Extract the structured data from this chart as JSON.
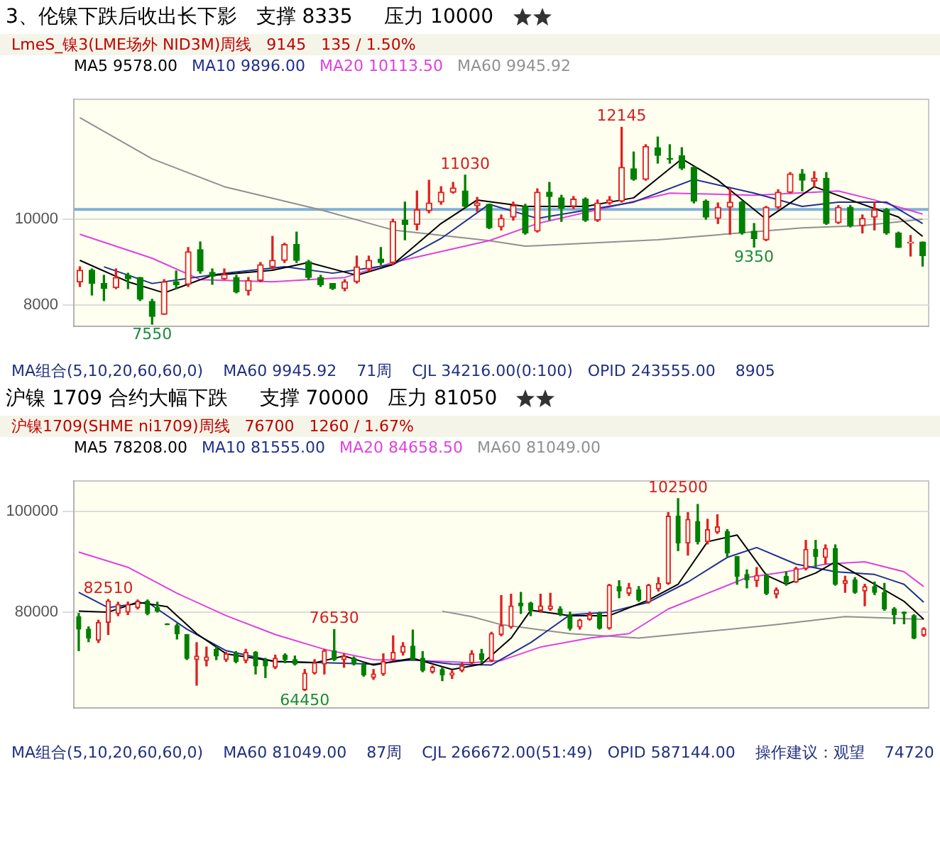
{
  "chart_data": [
    {
      "type": "candlestick",
      "title": "3、伦镍下跌后收出长下影   支撑 8335     压力 10000",
      "subtitle": "LmeS_镍3(LME场外 NID3M)周线   9145   135 / 1.50%",
      "categories": [
        null,
        null,
        null,
        null,
        null,
        null,
        null,
        null,
        null,
        null,
        null,
        null,
        null,
        null,
        null,
        null,
        null,
        null,
        null,
        null,
        null,
        null,
        null,
        null,
        null,
        null,
        null,
        null,
        null,
        null,
        null,
        null,
        null,
        null,
        null,
        null,
        null,
        null,
        null,
        null,
        null,
        null,
        null,
        null,
        null,
        null,
        null,
        null,
        null,
        null,
        null,
        null,
        null,
        null,
        null,
        null,
        null,
        null,
        null,
        null,
        null,
        null,
        null,
        null,
        null,
        null,
        null,
        null,
        null,
        null,
        null
      ],
      "ohlc": [
        [
          8535,
          8890,
          8430,
          8810
        ],
        [
          8810,
          8840,
          8230,
          8505
        ],
        [
          8505,
          8690,
          8100,
          8380
        ],
        [
          8400,
          8840,
          8380,
          8640
        ],
        [
          8690,
          8740,
          8380,
          8610
        ],
        [
          8640,
          8640,
          8100,
          8130
        ],
        [
          8080,
          8130,
          7550,
          7730
        ],
        [
          7780,
          8590,
          7780,
          8540
        ],
        [
          8540,
          8790,
          8380,
          8470
        ],
        [
          8480,
          9340,
          8430,
          9240
        ],
        [
          9290,
          9470,
          8740,
          8790
        ],
        [
          8760,
          8840,
          8480,
          8670
        ],
        [
          8610,
          8840,
          8590,
          8710
        ],
        [
          8640,
          8690,
          8280,
          8300
        ],
        [
          8330,
          8640,
          8230,
          8570
        ],
        [
          8570,
          8990,
          8540,
          8940
        ],
        [
          8890,
          9600,
          8840,
          9040
        ],
        [
          9040,
          9440,
          8990,
          9410
        ],
        [
          9410,
          9700,
          8990,
          9040
        ],
        [
          9010,
          9040,
          8590,
          8640
        ],
        [
          8640,
          8690,
          8430,
          8470
        ],
        [
          8500,
          8500,
          8360,
          8380
        ],
        [
          8380,
          8590,
          8330,
          8540
        ],
        [
          8540,
          9140,
          8510,
          8890
        ],
        [
          8840,
          9140,
          8790,
          9040
        ],
        [
          9070,
          9340,
          8940,
          8990
        ],
        [
          8990,
          10000,
          8940,
          9950
        ],
        [
          9980,
          10400,
          9520,
          9880
        ],
        [
          9880,
          10660,
          9750,
          10220
        ],
        [
          10200,
          10910,
          10150,
          10380
        ],
        [
          10400,
          10760,
          10350,
          10630
        ],
        [
          10630,
          10860,
          10610,
          10730
        ],
        [
          10660,
          11030,
          10280,
          10300
        ],
        [
          10320,
          10510,
          10180,
          10380
        ],
        [
          10350,
          10350,
          9780,
          9800
        ],
        [
          9820,
          10100,
          9750,
          10020
        ],
        [
          10050,
          10400,
          9980,
          10320
        ],
        [
          10300,
          10350,
          9650,
          9680
        ],
        [
          9720,
          10710,
          9700,
          10630
        ],
        [
          10630,
          10860,
          9980,
          10530
        ],
        [
          10500,
          10560,
          9950,
          10250
        ],
        [
          10300,
          10530,
          10250,
          10470
        ],
        [
          10470,
          10500,
          9950,
          9980
        ],
        [
          9980,
          10450,
          9950,
          10380
        ],
        [
          10380,
          10530,
          10350,
          10450
        ],
        [
          10420,
          12145,
          10400,
          11210
        ],
        [
          11180,
          11570,
          10910,
          10930
        ],
        [
          10930,
          11740,
          10910,
          11700
        ],
        [
          11670,
          11920,
          11310,
          11490
        ],
        [
          11420,
          11740,
          11310,
          11400
        ],
        [
          11480,
          11670,
          11160,
          11190
        ],
        [
          11210,
          11230,
          10380,
          10420
        ],
        [
          10420,
          10450,
          10000,
          10050
        ],
        [
          10020,
          10380,
          9900,
          10280
        ],
        [
          10280,
          10710,
          9650,
          10400
        ],
        [
          10400,
          10420,
          9650,
          9680
        ],
        [
          9720,
          9900,
          9350,
          9550
        ],
        [
          9520,
          10300,
          9500,
          10280
        ],
        [
          10280,
          10690,
          10250,
          10630
        ],
        [
          10630,
          11090,
          10610,
          11060
        ],
        [
          11060,
          11160,
          10660,
          10910
        ],
        [
          10890,
          11110,
          10760,
          10960
        ],
        [
          10960,
          11090,
          9880,
          9900
        ],
        [
          9920,
          10320,
          9900,
          10280
        ],
        [
          10280,
          10320,
          9820,
          9850
        ],
        [
          9850,
          10100,
          9680,
          10020
        ],
        [
          10050,
          10400,
          9750,
          10220
        ],
        [
          10220,
          10250,
          9650,
          9680
        ],
        [
          9680,
          9700,
          9340,
          9340
        ],
        [
          9440,
          9620,
          9140,
          9470
        ],
        [
          9470,
          9470,
          8905,
          9145
        ]
      ],
      "series": [
        {
          "type": "line",
          "name": "MA5 9578.00",
          "color": "#000000",
          "values": [
            9040,
            null,
            null,
            null,
            8540,
            null,
            null,
            8280,
            null,
            null,
            null,
            8690,
            null,
            null,
            null,
            null,
            8810,
            null,
            null,
            8990,
            null,
            null,
            null,
            8690,
            null,
            null,
            8940,
            null,
            null,
            null,
            9900,
            null,
            null,
            10450,
            null,
            null,
            null,
            10300,
            null,
            null,
            null,
            null,
            10300,
            null,
            null,
            null,
            10500,
            null,
            null,
            null,
            11410,
            null,
            null,
            10910,
            null,
            null,
            null,
            10000,
            null,
            null,
            null,
            10760,
            null,
            null,
            10450,
            null,
            null,
            null,
            10050,
            null,
            9600
          ]
        },
        {
          "type": "line",
          "name": "MA10 9896.00",
          "color": "#1f2f8f",
          "values": [
            null,
            null,
            8890,
            null,
            null,
            null,
            8500,
            null,
            null,
            null,
            null,
            null,
            8740,
            null,
            null,
            null,
            null,
            8890,
            null,
            null,
            null,
            8740,
            null,
            null,
            null,
            null,
            8940,
            null,
            null,
            null,
            9550,
            null,
            null,
            null,
            10350,
            null,
            null,
            null,
            10020,
            null,
            null,
            null,
            null,
            null,
            null,
            null,
            10400,
            null,
            null,
            null,
            null,
            10930,
            null,
            null,
            null,
            null,
            10610,
            null,
            null,
            null,
            10300,
            null,
            null,
            10400,
            null,
            null,
            null,
            10400,
            null,
            null,
            9900
          ]
        },
        {
          "type": "line",
          "name": "MA20 10113.50",
          "color": "#e040e0",
          "values": [
            9650,
            null,
            null,
            null,
            null,
            null,
            9090,
            null,
            null,
            null,
            8590,
            null,
            null,
            null,
            null,
            null,
            8540,
            null,
            null,
            null,
            null,
            null,
            8640,
            null,
            null,
            null,
            8990,
            null,
            null,
            null,
            null,
            null,
            null,
            null,
            9500,
            null,
            null,
            null,
            9900,
            null,
            null,
            null,
            null,
            null,
            null,
            null,
            null,
            null,
            null,
            10610,
            null,
            null,
            null,
            null,
            null,
            null,
            10560,
            null,
            null,
            null,
            null,
            null,
            null,
            10660,
            null,
            null,
            10450,
            null,
            null,
            null,
            10120
          ]
        },
        {
          "type": "line",
          "name": "MA60 9945.92",
          "color": "#909090",
          "values": [
            12370,
            null,
            null,
            null,
            null,
            null,
            11410,
            null,
            null,
            null,
            null,
            null,
            10760,
            null,
            null,
            null,
            null,
            null,
            null,
            null,
            10220,
            null,
            null,
            null,
            null,
            null,
            9750,
            null,
            null,
            null,
            null,
            null,
            null,
            null,
            9500,
            null,
            null,
            9370,
            null,
            null,
            null,
            null,
            null,
            null,
            null,
            null,
            null,
            null,
            9520,
            null,
            null,
            null,
            null,
            null,
            null,
            null,
            null,
            null,
            null,
            null,
            9800,
            null,
            null,
            null,
            null,
            9850,
            null,
            null,
            null,
            null,
            10000
          ]
        }
      ],
      "ylim": [
        7500,
        12800
      ],
      "yticks": [
        8000,
        10000
      ],
      "grid": "y",
      "legend": "top left",
      "marker": "none",
      "line_style": "solid",
      "ref_lines": [
        {
          "axis": "y",
          "value": 10230,
          "color": "#7fb0d8"
        }
      ],
      "annotations": [
        "MA组合(5,10,20,60,60,0)",
        "MA60 9945.92",
        "71周",
        "CJL 34216.00(0:100)   OPID 243555.00",
        {
          "text": "11030",
          "y": 11030
        },
        {
          "text": "12145",
          "y": 12145
        },
        {
          "text": "9350",
          "y": 9350
        },
        "8905",
        {
          "text": "7550",
          "y": 7550
        }
      ]
    },
    {
      "type": "candlestick",
      "title": "沪镍 1709 合约大幅下跌     支撑 70000   压力 81050",
      "subtitle": "沪镍1709(SHME ni1709)周线   76700   1260 / 1.67%",
      "categories": [
        null,
        null,
        null,
        null,
        null,
        null,
        null,
        null,
        null,
        null,
        null,
        null,
        null,
        null,
        null,
        null,
        null,
        null,
        null,
        null,
        null,
        null,
        null,
        null,
        null,
        null,
        null,
        null,
        null,
        null,
        null,
        null,
        null,
        null,
        null,
        null,
        null,
        null,
        null,
        null,
        null,
        null,
        null,
        null,
        null,
        null,
        null,
        null,
        null,
        null,
        null,
        null,
        null,
        null,
        null,
        null,
        null,
        null,
        null,
        null,
        null,
        null,
        null,
        null,
        null,
        null,
        null,
        null,
        null,
        null,
        null,
        null,
        null,
        null,
        null,
        null,
        null,
        null,
        null,
        null,
        null,
        null,
        null,
        null,
        null,
        null,
        null
      ],
      "ohlc": [
        [
          79110,
          79730,
          72350,
          76620
        ],
        [
          76620,
          77070,
          74130,
          74840
        ],
        [
          74400,
          78400,
          73960,
          77960
        ],
        [
          77960,
          82510,
          75550,
          82200
        ],
        [
          79730,
          81960,
          79290,
          81510
        ],
        [
          80000,
          82000,
          79500,
          81510
        ],
        [
          80890,
          82400,
          80620,
          82130
        ],
        [
          82130,
          82400,
          79470,
          79730
        ],
        [
          80890,
          81960,
          80000,
          80180
        ],
        [
          77690,
          77690,
          77510,
          77510
        ],
        [
          77330,
          77690,
          74660,
          75730
        ],
        [
          75550,
          75550,
          70580,
          70840
        ],
        [
          70580,
          73950,
          65510,
          71290
        ],
        [
          70400,
          73070,
          69330,
          71110
        ],
        [
          72620,
          73070,
          70580,
          71290
        ],
        [
          70580,
          72000,
          70220,
          71730
        ],
        [
          71730,
          72180,
          69950,
          70220
        ],
        [
          70400,
          72620,
          69950,
          72000
        ],
        [
          72000,
          72180,
          67730,
          69330
        ],
        [
          70400,
          70840,
          67020,
          69330
        ],
        [
          69060,
          71470,
          68800,
          70840
        ],
        [
          71470,
          71730,
          69950,
          70580
        ],
        [
          70580,
          71290,
          69510,
          69690
        ],
        [
          64620,
          68620,
          64450,
          67910
        ],
        [
          67910,
          70580,
          67730,
          69950
        ],
        [
          69690,
          72620,
          67730,
          72350
        ],
        [
          72350,
          76530,
          70400,
          70580
        ],
        [
          70580,
          71730,
          69060,
          71290
        ],
        [
          70840,
          71110,
          69510,
          69690
        ],
        [
          69510,
          69950,
          67290,
          67550
        ],
        [
          67020,
          68620,
          66660,
          67730
        ],
        [
          67730,
          71730,
          67460,
          70220
        ],
        [
          70580,
          75290,
          70400,
          72000
        ],
        [
          72000,
          73950,
          71470,
          73240
        ],
        [
          73240,
          76440,
          70400,
          70580
        ],
        [
          70840,
          72180,
          68170,
          68440
        ],
        [
          68170,
          69330,
          67910,
          69060
        ],
        [
          68620,
          69060,
          66400,
          67550
        ],
        [
          67550,
          68440,
          66840,
          67910
        ],
        [
          68440,
          69950,
          68170,
          69330
        ],
        [
          69950,
          72350,
          69690,
          71730
        ],
        [
          71730,
          72620,
          69950,
          70580
        ],
        [
          70400,
          76000,
          70180,
          75730
        ],
        [
          75550,
          83290,
          75290,
          77330
        ],
        [
          77070,
          83550,
          76800,
          81240
        ],
        [
          81780,
          83910,
          79730,
          81240
        ],
        [
          81780,
          81960,
          79290,
          80360
        ],
        [
          80360,
          83550,
          80000,
          81240
        ],
        [
          80620,
          83730,
          80360,
          81240
        ],
        [
          80620,
          81070,
          79290,
          79730
        ],
        [
          79470,
          80000,
          76440,
          76800
        ],
        [
          77070,
          78580,
          76620,
          78400
        ],
        [
          78580,
          80000,
          78400,
          79470
        ],
        [
          79730,
          80000,
          76620,
          76800
        ],
        [
          76800,
          85510,
          76620,
          85330
        ],
        [
          85070,
          86220,
          82840,
          84180
        ],
        [
          83730,
          85690,
          83290,
          84800
        ],
        [
          84440,
          85070,
          82130,
          82400
        ],
        [
          81960,
          85510,
          81780,
          85330
        ],
        [
          84620,
          86840,
          84180,
          85690
        ],
        [
          85690,
          99740,
          85510,
          99020
        ],
        [
          99020,
          102500,
          92180,
          93690
        ],
        [
          93690,
          99740,
          91290,
          98400
        ],
        [
          97960,
          101340,
          93510,
          93960
        ],
        [
          93960,
          98400,
          93510,
          96360
        ],
        [
          95870,
          99290,
          95600,
          96890
        ],
        [
          96000,
          96360,
          91020,
          91730
        ],
        [
          91020,
          91020,
          85510,
          87110
        ],
        [
          87460,
          88360,
          84800,
          86400
        ],
        [
          86220,
          88840,
          85070,
          87290
        ],
        [
          87290,
          87550,
          83460,
          83730
        ],
        [
          83560,
          84800,
          82840,
          84440
        ],
        [
          87110,
          88000,
          85330,
          85960
        ],
        [
          85960,
          88890,
          85870,
          88620
        ],
        [
          88620,
          94220,
          88360,
          92450
        ],
        [
          92450,
          94220,
          88890,
          91020
        ],
        [
          90840,
          93330,
          89510,
          92620
        ],
        [
          92620,
          93330,
          85330,
          85510
        ],
        [
          85690,
          87110,
          83910,
          86220
        ],
        [
          86400,
          86840,
          83730,
          83910
        ],
        [
          84180,
          85510,
          81240,
          85070
        ],
        [
          85070,
          85960,
          83460,
          83910
        ],
        [
          83910,
          85690,
          80360,
          80620
        ],
        [
          80620,
          80890,
          77690,
          79470
        ],
        [
          80000,
          80000,
          77690,
          79730
        ],
        [
          79290,
          79470,
          74720,
          74840
        ],
        [
          75450,
          76890,
          75200,
          76700
        ]
      ],
      "series": [
        {
          "type": "line",
          "name": "MA5 78208.00",
          "color": "#000000",
          "values": [
            80180,
            null,
            null,
            80000,
            null,
            null,
            81960,
            null,
            null,
            81070,
            null,
            null,
            75730,
            null,
            null,
            71730,
            null,
            null,
            null,
            null,
            70220,
            null,
            null,
            null,
            69950,
            null,
            null,
            71290,
            null,
            null,
            69510,
            null,
            null,
            null,
            70840,
            null,
            null,
            null,
            68620,
            null,
            null,
            69690,
            null,
            null,
            74840,
            null,
            80360,
            null,
            null,
            null,
            79290,
            null,
            null,
            null,
            79290,
            null,
            null,
            null,
            82400,
            null,
            null,
            85510,
            null,
            null,
            93960,
            null,
            null,
            95290,
            null,
            null,
            87290,
            null,
            85510,
            null,
            null,
            87730,
            null,
            89960,
            null,
            null,
            null,
            85510,
            null,
            null,
            82130,
            null,
            78580
          ]
        },
        {
          "type": "line",
          "name": "MA10 81555.00",
          "color": "#1f2f8f",
          "values": [
            83910,
            null,
            null,
            80890,
            null,
            null,
            null,
            81960,
            null,
            null,
            null,
            76620,
            null,
            null,
            null,
            72350,
            null,
            null,
            null,
            null,
            70220,
            null,
            null,
            null,
            null,
            69950,
            null,
            null,
            null,
            null,
            69690,
            null,
            null,
            null,
            70580,
            null,
            null,
            null,
            69690,
            null,
            null,
            null,
            69510,
            null,
            null,
            null,
            73950,
            null,
            null,
            null,
            79470,
            null,
            null,
            null,
            80000,
            null,
            null,
            null,
            81960,
            null,
            null,
            null,
            85960,
            null,
            null,
            null,
            90840,
            null,
            null,
            92800,
            null,
            null,
            null,
            89510,
            null,
            null,
            null,
            88000,
            null,
            null,
            null,
            87460,
            null,
            null,
            85510,
            null,
            81960
          ]
        },
        {
          "type": "line",
          "name": "MA20 84658.50",
          "color": "#e040e0",
          "values": [
            91910,
            null,
            null,
            null,
            null,
            88890,
            null,
            null,
            null,
            null,
            83730,
            null,
            null,
            null,
            null,
            79290,
            null,
            null,
            null,
            null,
            75550,
            null,
            null,
            null,
            null,
            72620,
            null,
            null,
            null,
            null,
            70580,
            null,
            null,
            null,
            null,
            70400,
            null,
            null,
            null,
            null,
            69950,
            null,
            null,
            70400,
            null,
            null,
            null,
            73070,
            null,
            null,
            null,
            null,
            74840,
            null,
            null,
            null,
            75730,
            null,
            null,
            null,
            80620,
            null,
            null,
            null,
            83730,
            null,
            null,
            null,
            86840,
            null,
            null,
            null,
            88000,
            null,
            null,
            null,
            89510,
            null,
            null,
            null,
            89960,
            null,
            null,
            null,
            88000,
            null,
            85070
          ]
        },
        {
          "type": "line",
          "name": "MA60 81049.00",
          "color": "#909090",
          "values": [
            null,
            null,
            null,
            null,
            null,
            null,
            null,
            null,
            null,
            null,
            null,
            null,
            null,
            null,
            null,
            null,
            null,
            null,
            null,
            null,
            null,
            null,
            null,
            null,
            null,
            null,
            null,
            null,
            null,
            null,
            null,
            null,
            null,
            null,
            null,
            null,
            null,
            80180,
            null,
            null,
            79110,
            null,
            null,
            77510,
            null,
            null,
            null,
            null,
            null,
            null,
            75730,
            null,
            null,
            null,
            null,
            null,
            null,
            74840,
            null,
            null,
            null,
            null,
            null,
            null,
            76180,
            null,
            null,
            null,
            null,
            null,
            null,
            77510,
            null,
            null,
            null,
            null,
            null,
            null,
            79110,
            null,
            null,
            null,
            null,
            null,
            null,
            null,
            78580
          ]
        }
      ],
      "ylim": [
        61000,
        106000
      ],
      "yticks": [
        80000,
        100000
      ],
      "grid": "y",
      "legend": "top left",
      "marker": "none",
      "line_style": "solid",
      "annotations": [
        "MA组合(5,10,20,60,60,0)",
        "MA60 81049.00",
        "87周",
        "CJL 266672.00(51:49)   OPID 587144.00",
        "操作建议：观望",
        {
          "text": "102500",
          "y": 102500
        },
        {
          "text": "82510",
          "y": 82510
        },
        {
          "text": "76530",
          "y": 76530
        },
        {
          "text": "64450",
          "y": 64450
        },
        "74720"
      ]
    }
  ]
}
